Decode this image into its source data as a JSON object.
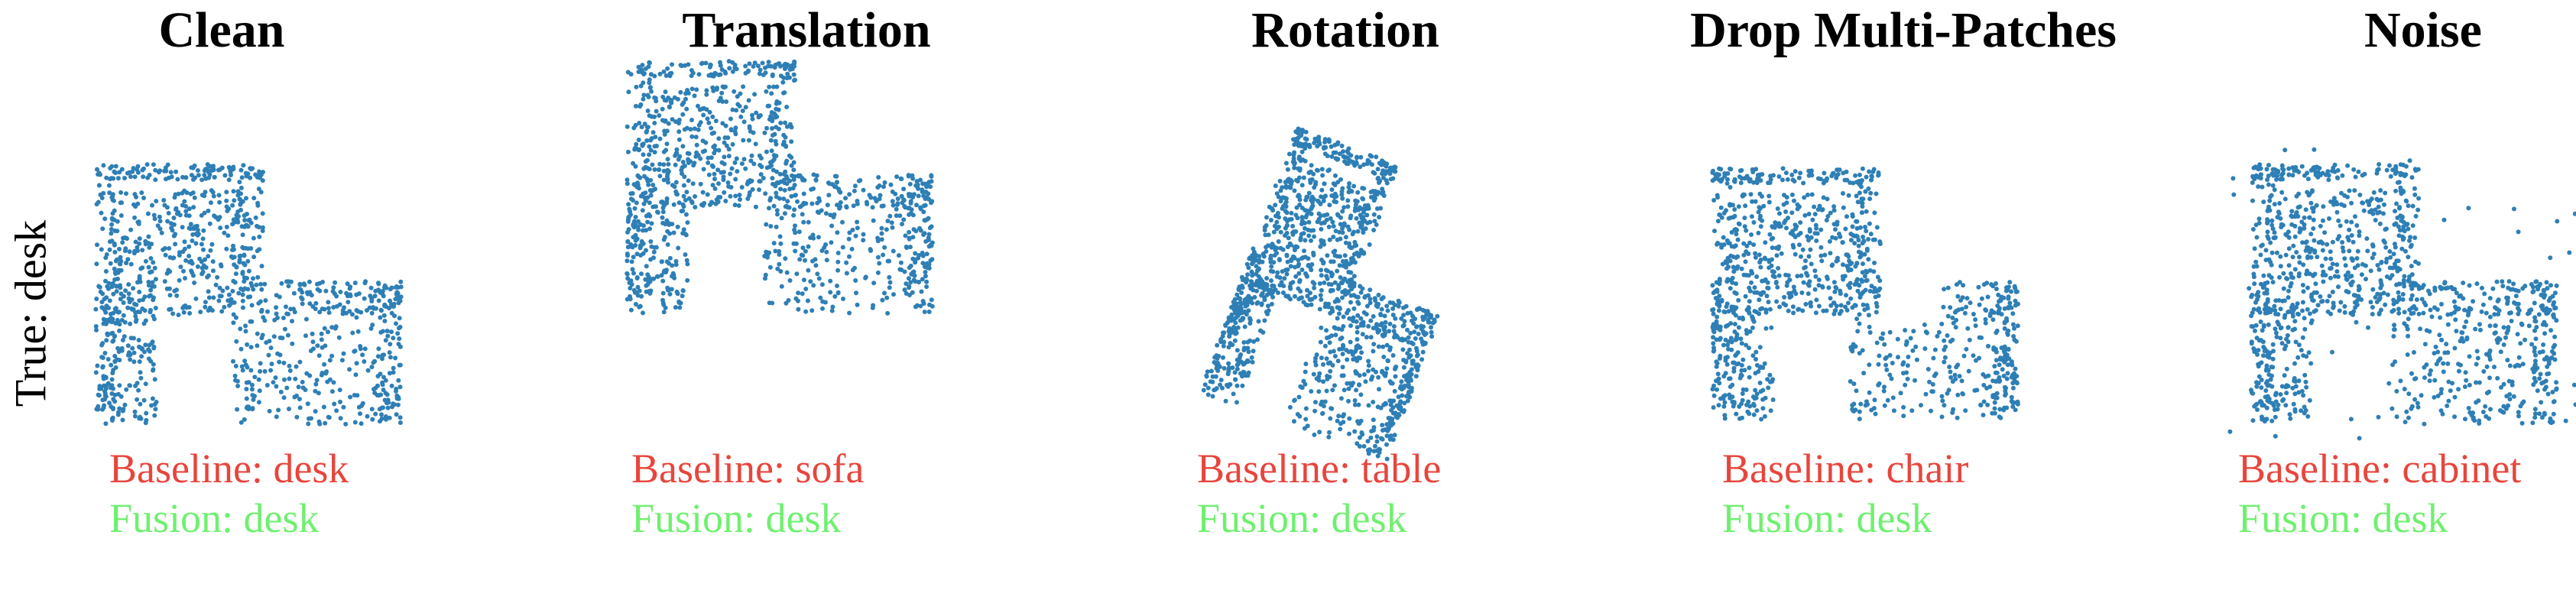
{
  "row_label": "True: desk",
  "point_color": "#2e7fb5",
  "baseline_color": "#e8453c",
  "fusion_color": "#6ff06f",
  "panels": [
    {
      "title": "Clean",
      "baseline": "Baseline: desk",
      "fusion": "Fusion: desk"
    },
    {
      "title": "Translation",
      "baseline": "Baseline: sofa",
      "fusion": "Fusion: desk"
    },
    {
      "title": "Rotation",
      "baseline": "Baseline: table",
      "fusion": "Fusion: desk"
    },
    {
      "title": "Drop Multi-Patches",
      "baseline": "Baseline: chair",
      "fusion": "Fusion: desk"
    },
    {
      "title": "Noise",
      "baseline": "Baseline: cabinet",
      "fusion": "Fusion: desk"
    }
  ]
}
